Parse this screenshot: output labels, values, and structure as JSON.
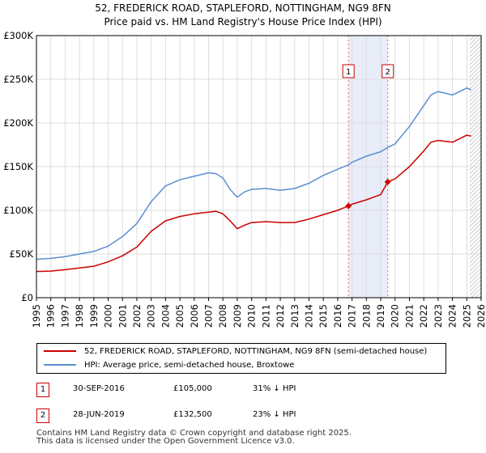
{
  "chart_data": {
    "type": "line",
    "title": "52, FREDERICK ROAD, STAPLEFORD, NOTTINGHAM, NG9 8FN",
    "subtitle": "Price paid vs. HM Land Registry's House Price Index (HPI)",
    "xlabel": "",
    "ylabel": "",
    "xlim": [
      1995,
      2026
    ],
    "ylim": [
      0,
      300000
    ],
    "x_ticks": [
      "1995",
      "1996",
      "1997",
      "1998",
      "1999",
      "2000",
      "2001",
      "2002",
      "2003",
      "2004",
      "2005",
      "2006",
      "2007",
      "2008",
      "2009",
      "2010",
      "2011",
      "2012",
      "2013",
      "2014",
      "2015",
      "2016",
      "2017",
      "2018",
      "2019",
      "2020",
      "2021",
      "2022",
      "2023",
      "2024",
      "2025",
      "2026"
    ],
    "y_ticks": [
      {
        "value": 0,
        "label": "£0"
      },
      {
        "value": 50000,
        "label": "£50K"
      },
      {
        "value": 100000,
        "label": "£100K"
      },
      {
        "value": 150000,
        "label": "£150K"
      },
      {
        "value": 200000,
        "label": "£200K"
      },
      {
        "value": 250000,
        "label": "£250K"
      },
      {
        "value": 300000,
        "label": "£300K"
      }
    ],
    "grid": true,
    "highlight_span": [
      2016.75,
      2019.49
    ],
    "forecast_start": 2025.2,
    "series": [
      {
        "name": "52, FREDERICK ROAD, STAPLEFORD, NOTTINGHAM, NG9 8FN (semi-detached house)",
        "color": "#cc0000",
        "x": [
          1995,
          1996,
          1997,
          1998,
          1999,
          2000,
          2001,
          2002,
          2003,
          2004,
          2005,
          2006,
          2007,
          2007.5,
          2008,
          2008.5,
          2009,
          2009.5,
          2010,
          2011,
          2012,
          2013,
          2014,
          2015,
          2016,
          2016.75,
          2017,
          2018,
          2019,
          2019.49,
          2020,
          2021,
          2022,
          2022.5,
          2023,
          2024,
          2025,
          2025.3
        ],
        "values": [
          30000,
          30500,
          32000,
          34000,
          36000,
          41000,
          48000,
          58000,
          76000,
          88000,
          93000,
          96000,
          98000,
          99000,
          96000,
          88000,
          79000,
          83000,
          86000,
          87000,
          86000,
          86000,
          90000,
          95000,
          100000,
          105000,
          107000,
          112000,
          118000,
          132500,
          136000,
          150000,
          168000,
          178000,
          180000,
          178000,
          186000,
          185000
        ]
      },
      {
        "name": "HPI: Average price, semi-detached house, Broxtowe",
        "color": "#5b8fd0",
        "x": [
          1995,
          1996,
          1997,
          1998,
          1999,
          2000,
          2001,
          2002,
          2003,
          2004,
          2005,
          2006,
          2007,
          2007.5,
          2008,
          2008.5,
          2009,
          2009.5,
          2010,
          2011,
          2012,
          2013,
          2014,
          2015,
          2016,
          2016.75,
          2017,
          2018,
          2019,
          2019.49,
          2020,
          2021,
          2022,
          2022.5,
          2023,
          2024,
          2025,
          2025.3
        ],
        "values": [
          44000,
          45000,
          47000,
          50000,
          53000,
          59000,
          70000,
          85000,
          110000,
          128000,
          135000,
          139000,
          143000,
          142000,
          137000,
          124000,
          115000,
          121000,
          124000,
          125000,
          123000,
          125000,
          131000,
          140000,
          147000,
          152000,
          155000,
          162000,
          167000,
          172000,
          176000,
          196000,
          220000,
          232000,
          236000,
          232000,
          240000,
          238000
        ]
      }
    ],
    "markers": [
      {
        "label": "1",
        "x": 2016.75,
        "y": 105000
      },
      {
        "label": "2",
        "x": 2019.49,
        "y": 132500
      }
    ]
  },
  "legend": {
    "items": [
      {
        "label": "52, FREDERICK ROAD, STAPLEFORD, NOTTINGHAM, NG9 8FN (semi-detached house)",
        "color": "#cc0000"
      },
      {
        "label": "HPI: Average price, semi-detached house, Broxtowe",
        "color": "#5b8fd0"
      }
    ]
  },
  "transactions": [
    {
      "num": "1",
      "date": "30-SEP-2016",
      "price": "£105,000",
      "hpi": "31% ↓ HPI"
    },
    {
      "num": "2",
      "date": "28-JUN-2019",
      "price": "£132,500",
      "hpi": "23% ↓ HPI"
    }
  ],
  "footer": {
    "line1": "Contains HM Land Registry data © Crown copyright and database right 2025.",
    "line2": "This data is licensed under the Open Government Licence v3.0."
  }
}
